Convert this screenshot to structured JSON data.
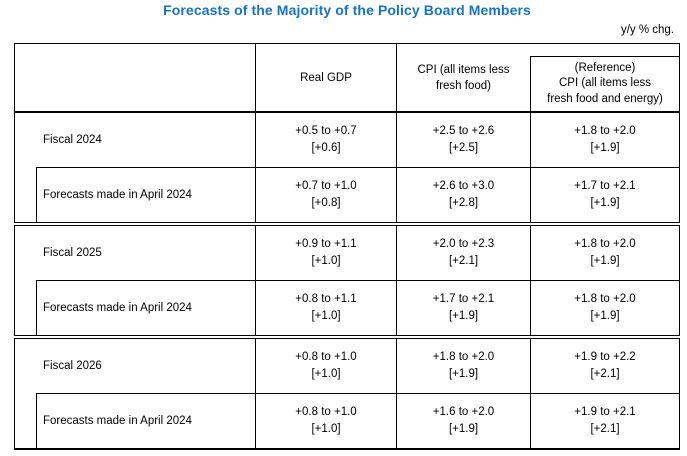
{
  "title": "Forecasts of the Majority of the Policy Board Members",
  "unit_note": "y/y % chg.",
  "colors": {
    "title_blue": "#1375c8",
    "border": "#000000",
    "text": "#000000"
  },
  "table": {
    "header": {
      "real_gdp": "Real GDP",
      "cpi_line1": "CPI (all items less",
      "cpi_line2": "fresh food)",
      "ref_line1": "(Reference)",
      "ref_line2": "CPI (all items less",
      "ref_line3": "fresh food and energy)"
    },
    "sections": [
      {
        "name": "fiscal-2024",
        "rows": [
          {
            "label": "Fiscal 2024",
            "gdp_range": "+0.5 to +0.7",
            "gdp_median": "[+0.6]",
            "cpi_range": "+2.5 to +2.6",
            "cpi_median": "[+2.5]",
            "ref_range": "+1.8 to +2.0",
            "ref_median": "[+1.9]"
          },
          {
            "label": "Forecasts made in April 2024",
            "gdp_range": "+0.7 to +1.0",
            "gdp_median": "[+0.8]",
            "cpi_range": "+2.6 to +3.0",
            "cpi_median": "[+2.8]",
            "ref_range": "+1.7 to +2.1",
            "ref_median": "[+1.9]"
          }
        ]
      },
      {
        "name": "fiscal-2025",
        "rows": [
          {
            "label": "Fiscal 2025",
            "gdp_range": "+0.9 to +1.1",
            "gdp_median": "[+1.0]",
            "cpi_range": "+2.0 to +2.3",
            "cpi_median": "[+2.1]",
            "ref_range": "+1.8 to +2.0",
            "ref_median": "[+1.9]"
          },
          {
            "label": "Forecasts made in April 2024",
            "gdp_range": "+0.8 to +1.1",
            "gdp_median": "[+1.0]",
            "cpi_range": "+1.7 to +2.1",
            "cpi_median": "[+1.9]",
            "ref_range": "+1.8 to +2.0",
            "ref_median": "[+1.9]"
          }
        ]
      },
      {
        "name": "fiscal-2026",
        "rows": [
          {
            "label": "Fiscal 2026",
            "gdp_range": "+0.8 to +1.0",
            "gdp_median": "[+1.0]",
            "cpi_range": "+1.8 to +2.0",
            "cpi_median": "[+1.9]",
            "ref_range": "+1.9 to +2.2",
            "ref_median": "[+2.1]"
          },
          {
            "label": "Forecasts made in April 2024",
            "gdp_range": "+0.8 to +1.0",
            "gdp_median": "[+1.0]",
            "cpi_range": "+1.6 to +2.0",
            "cpi_median": "[+1.9]",
            "ref_range": "+1.9 to +2.1",
            "ref_median": "[+2.1]"
          }
        ]
      }
    ]
  }
}
